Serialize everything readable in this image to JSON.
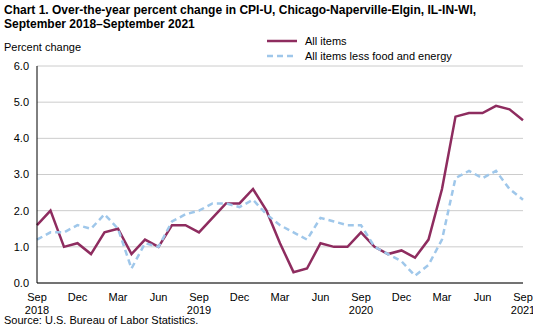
{
  "chart_data": {
    "type": "line",
    "title": "Chart 1. Over-the-year percent change in CPI-U, Chicago-Naperville-Elgin, IL-IN-WI, September 2018–September 2021",
    "y_label": "Percent change",
    "source": "Source: U.S. Bureau of Labor Statistics.",
    "categories": [
      "Sep 2018",
      null,
      null,
      "Dec",
      null,
      null,
      "Mar",
      null,
      null,
      "Jun",
      null,
      null,
      "Sep 2019",
      null,
      null,
      "Dec",
      null,
      null,
      "Mar",
      null,
      null,
      "Jun",
      null,
      null,
      "Sep 2020",
      null,
      null,
      "Dec",
      null,
      null,
      "Mar",
      null,
      null,
      "Jun",
      null,
      null,
      "Sep 2021"
    ],
    "series": [
      {
        "name": "All items",
        "color": "#8e2c5f",
        "line_style": "solid",
        "values": [
          1.6,
          2.0,
          1.0,
          1.1,
          0.8,
          1.4,
          1.5,
          0.8,
          1.2,
          1.0,
          1.6,
          1.6,
          1.4,
          1.8,
          2.2,
          2.2,
          2.6,
          2.0,
          1.1,
          0.3,
          0.4,
          1.1,
          1.0,
          1.0,
          1.4,
          1.0,
          0.8,
          0.9,
          0.7,
          1.2,
          2.6,
          4.6,
          4.7,
          4.7,
          4.9,
          4.8,
          4.5
        ]
      },
      {
        "name": "All items less food and energy",
        "color": "#9fc7ea",
        "line_style": "dashed",
        "values": [
          1.2,
          1.4,
          1.4,
          1.6,
          1.5,
          1.9,
          1.5,
          0.4,
          1.1,
          1.0,
          1.7,
          1.9,
          2.0,
          2.2,
          2.2,
          2.1,
          2.3,
          1.9,
          1.6,
          1.4,
          1.2,
          1.8,
          1.7,
          1.6,
          1.6,
          1.0,
          0.8,
          0.6,
          0.2,
          0.5,
          1.2,
          2.9,
          3.1,
          2.9,
          3.1,
          2.6,
          2.3
        ]
      }
    ],
    "ylim": [
      0,
      6
    ],
    "yticks": [
      {
        "value": 0,
        "label": "0.0"
      },
      {
        "value": 1,
        "label": "1.0"
      },
      {
        "value": 2,
        "label": "2.0"
      },
      {
        "value": 3,
        "label": "3.0"
      },
      {
        "value": 4,
        "label": "4.0"
      },
      {
        "value": 5,
        "label": "5.0"
      },
      {
        "value": 6,
        "label": "6.0"
      }
    ],
    "grid": true,
    "legend": "top"
  }
}
